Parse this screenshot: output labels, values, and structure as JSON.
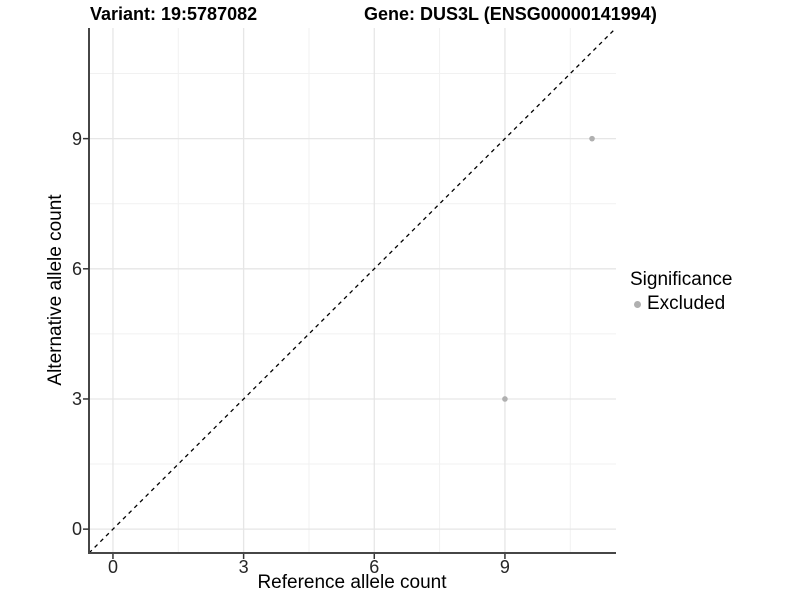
{
  "titles": {
    "variant": "Variant: 19:5787082",
    "gene": "Gene: DUS3L (ENSG00000141994)"
  },
  "chart_data": {
    "type": "scatter",
    "xlabel": "Reference allele count",
    "ylabel": "Alternative allele count",
    "xlim": [
      -0.55,
      11.55
    ],
    "ylim": [
      -0.55,
      11.55
    ],
    "x_ticks": [
      0,
      3,
      6,
      9
    ],
    "y_ticks": [
      0,
      3,
      6,
      9
    ],
    "x_minor_ticks": [
      1.5,
      4.5,
      7.5,
      10.5
    ],
    "y_minor_ticks": [
      1.5,
      4.5,
      7.5,
      10.5
    ],
    "grid": true,
    "points": [
      {
        "x": 9,
        "y": 3,
        "significance": "Excluded"
      },
      {
        "x": 11,
        "y": 9,
        "significance": "Excluded"
      }
    ],
    "identity_line": {
      "slope": 1,
      "intercept": 0,
      "style": "dashed"
    },
    "legend": {
      "title": "Significance",
      "position": "right",
      "items": [
        {
          "label": "Excluded",
          "color": "#B0B0B0"
        }
      ]
    }
  },
  "colors": {
    "point": "#B0B0B0",
    "axis_line": "#464646",
    "tick_mark": "#333333",
    "grid_major": "#E6E6E6",
    "grid_minor": "#F1F1F1",
    "identity_line": "#000000",
    "tick_label": "#262626",
    "text": "#000000"
  }
}
